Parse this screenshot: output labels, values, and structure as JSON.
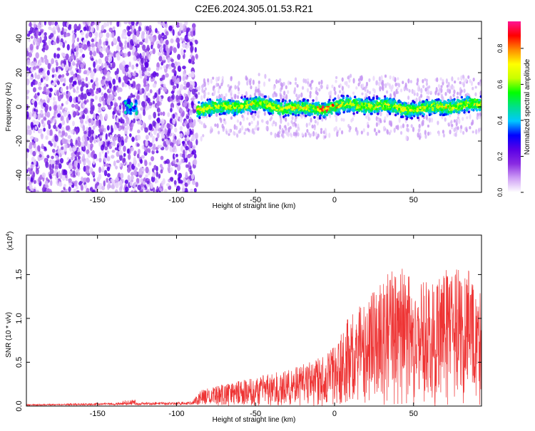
{
  "title": "C2E6.2024.305.01.53.R21",
  "chart_data": [
    {
      "type": "heatmap",
      "xlabel": "Height of straight line (km)",
      "ylabel": "Frequency (Hz)",
      "xlim": [
        -195,
        93
      ],
      "ylim": [
        -50,
        50
      ],
      "xticks": [
        -150,
        -100,
        -50,
        0,
        50
      ],
      "yticks": [
        -40,
        -20,
        0,
        20,
        40
      ],
      "xtick_labels": [
        "-150",
        "-100",
        "-50",
        "0",
        "50"
      ],
      "ytick_labels": [
        "-40",
        "-20",
        "0",
        "20",
        "40"
      ],
      "colorbar": {
        "label": "Normalized spectral amplitude",
        "range": [
          0,
          0.95
        ],
        "ticks": [
          0.0,
          0.2,
          0.4,
          0.6,
          0.8
        ],
        "tick_labels": [
          "0.0",
          "0.2",
          "0.4",
          "0.6",
          "0.8"
        ],
        "colors": [
          "#ffffff",
          "#ce9ef5",
          "#8a2be2",
          "#5a00e6",
          "#0000ff",
          "#00c8ff",
          "#00e08a",
          "#00ff00",
          "#c8ff00",
          "#ffff00",
          "#ff8c00",
          "#ff0000",
          "#ff1493"
        ]
      },
      "regions": [
        {
          "name": "noise",
          "x_range": [
            -195,
            -87
          ],
          "y_range": [
            -50,
            50
          ],
          "amplitude": 0.1
        },
        {
          "name": "signal_band",
          "x_range": [
            -87,
            93
          ],
          "center_freq": 0,
          "half_width_hz": 6,
          "peak_amplitude": 0.9
        }
      ]
    },
    {
      "type": "line",
      "xlabel": "Height of straight line (km)",
      "ylabel": "SNR (10 * v/v)",
      "multiplier_label": "(x10",
      "multiplier_exp": "4",
      "multiplier_close": ")",
      "xlim": [
        -195,
        93
      ],
      "ylim": [
        0,
        1.95
      ],
      "xticks": [
        -150,
        -100,
        -50,
        0,
        50
      ],
      "yticks": [
        0.0,
        0.5,
        1.0,
        1.5
      ],
      "xtick_labels": [
        "-150",
        "-100",
        "-50",
        "0",
        "50"
      ],
      "ytick_labels": [
        "0.0",
        "0.5",
        "1.0",
        "1.5"
      ],
      "color": "#ee3333",
      "envelope": [
        {
          "x": -195,
          "y": 0.02
        },
        {
          "x": -130,
          "y": 0.04
        },
        {
          "x": -90,
          "y": 0.05
        },
        {
          "x": -85,
          "y": 0.18
        },
        {
          "x": -70,
          "y": 0.25
        },
        {
          "x": -50,
          "y": 0.33
        },
        {
          "x": -30,
          "y": 0.42
        },
        {
          "x": -10,
          "y": 0.55
        },
        {
          "x": 0,
          "y": 0.72
        },
        {
          "x": 10,
          "y": 1.05
        },
        {
          "x": 20,
          "y": 1.2
        },
        {
          "x": 30,
          "y": 1.45
        },
        {
          "x": 40,
          "y": 1.6
        },
        {
          "x": 50,
          "y": 1.5
        },
        {
          "x": 60,
          "y": 1.45
        },
        {
          "x": 70,
          "y": 1.55
        },
        {
          "x": 80,
          "y": 1.6
        },
        {
          "x": 93,
          "y": 1.5
        }
      ]
    }
  ]
}
